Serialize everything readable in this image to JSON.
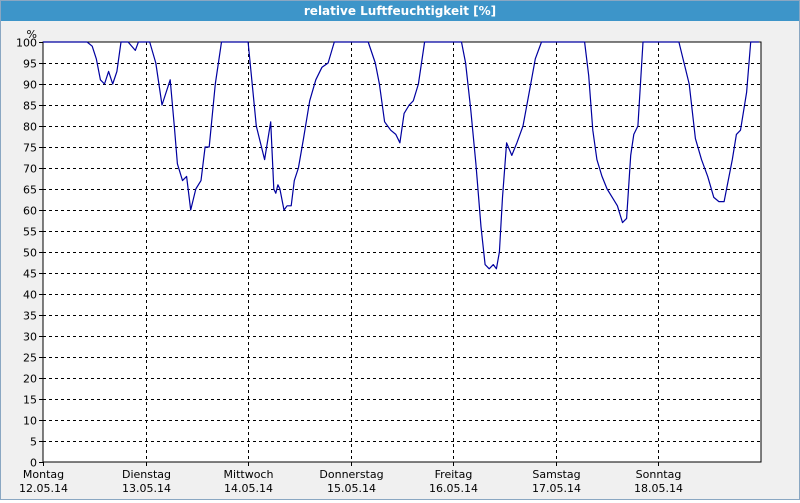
{
  "window": {
    "title": "relative Luftfeuchtigkeit [%]"
  },
  "chart_data": {
    "type": "line",
    "title": "relative Luftfeuchtigkeit [%]",
    "ylabel": "%",
    "ylim": [
      0,
      100
    ],
    "yticks": [
      0,
      5,
      10,
      15,
      20,
      25,
      30,
      35,
      40,
      45,
      50,
      55,
      60,
      65,
      70,
      75,
      80,
      85,
      90,
      95,
      100
    ],
    "xlim": [
      0,
      7
    ],
    "grid": true,
    "days": [
      {
        "name": "Montag",
        "date": "12.05.14"
      },
      {
        "name": "Dienstag",
        "date": "13.05.14"
      },
      {
        "name": "Mittwoch",
        "date": "14.05.14"
      },
      {
        "name": "Donnerstag",
        "date": "15.05.14"
      },
      {
        "name": "Freitag",
        "date": "16.05.14"
      },
      {
        "name": "Samstag",
        "date": "17.05.14"
      },
      {
        "name": "Sonntag",
        "date": "18.05.14"
      }
    ],
    "series": [
      {
        "color": "#0000a0",
        "x": [
          0.0,
          0.43,
          0.48,
          0.52,
          0.56,
          0.6,
          0.64,
          0.68,
          0.72,
          0.76,
          0.83,
          0.9,
          0.93,
          0.97,
          1.04,
          1.1,
          1.16,
          1.24,
          1.28,
          1.31,
          1.36,
          1.4,
          1.44,
          1.49,
          1.54,
          1.58,
          1.62,
          1.68,
          1.74,
          1.8,
          1.86,
          1.92,
          2.0,
          2.08,
          2.16,
          2.22,
          2.25,
          2.27,
          2.29,
          2.31,
          2.35,
          2.38,
          2.42,
          2.45,
          2.49,
          2.54,
          2.6,
          2.66,
          2.72,
          2.78,
          2.84,
          2.92,
          3.0,
          3.08,
          3.17,
          3.24,
          3.28,
          3.33,
          3.39,
          3.44,
          3.48,
          3.52,
          3.57,
          3.61,
          3.66,
          3.72,
          3.78,
          3.84,
          3.88,
          4.0,
          4.08,
          4.12,
          4.17,
          4.22,
          4.27,
          4.31,
          4.35,
          4.39,
          4.42,
          4.45,
          4.48,
          4.52,
          4.57,
          4.62,
          4.68,
          4.74,
          4.8,
          4.86,
          4.92,
          5.0,
          5.1,
          5.2,
          5.28,
          5.32,
          5.36,
          5.4,
          5.45,
          5.5,
          5.55,
          5.6,
          5.65,
          5.69,
          5.73,
          5.76,
          5.8,
          5.85,
          5.9,
          6.0,
          6.1,
          6.2,
          6.3,
          6.36,
          6.42,
          6.48,
          6.54,
          6.59,
          6.64,
          6.68,
          6.72,
          6.76,
          6.8,
          6.86,
          6.9,
          6.94,
          6.98
        ],
        "y": [
          100,
          100,
          99,
          96,
          91,
          90,
          93,
          90,
          93,
          100,
          100,
          98,
          100,
          100,
          100,
          95,
          85,
          91,
          80,
          71,
          67,
          68,
          60,
          65,
          67,
          75,
          75,
          90,
          100,
          100,
          100,
          100,
          100,
          80,
          72,
          81,
          65,
          64,
          66,
          65,
          60,
          61,
          61,
          67,
          70,
          77,
          86,
          91,
          94,
          95,
          100,
          100,
          100,
          100,
          100,
          95,
          90,
          81,
          79,
          78,
          76,
          83,
          85,
          86,
          90,
          100,
          100,
          100,
          100,
          100,
          100,
          95,
          84,
          71,
          56,
          47,
          46,
          47,
          46,
          50,
          63,
          76,
          73,
          76,
          80,
          88,
          96,
          100,
          100,
          100,
          100,
          100,
          100,
          92,
          79,
          72,
          68,
          65,
          63,
          61,
          57,
          58,
          73,
          78,
          80,
          100,
          100,
          100,
          100,
          100,
          90,
          77,
          72,
          68,
          63,
          62,
          62,
          67,
          72,
          78,
          79,
          88,
          100,
          100,
          100
        ]
      }
    ]
  }
}
